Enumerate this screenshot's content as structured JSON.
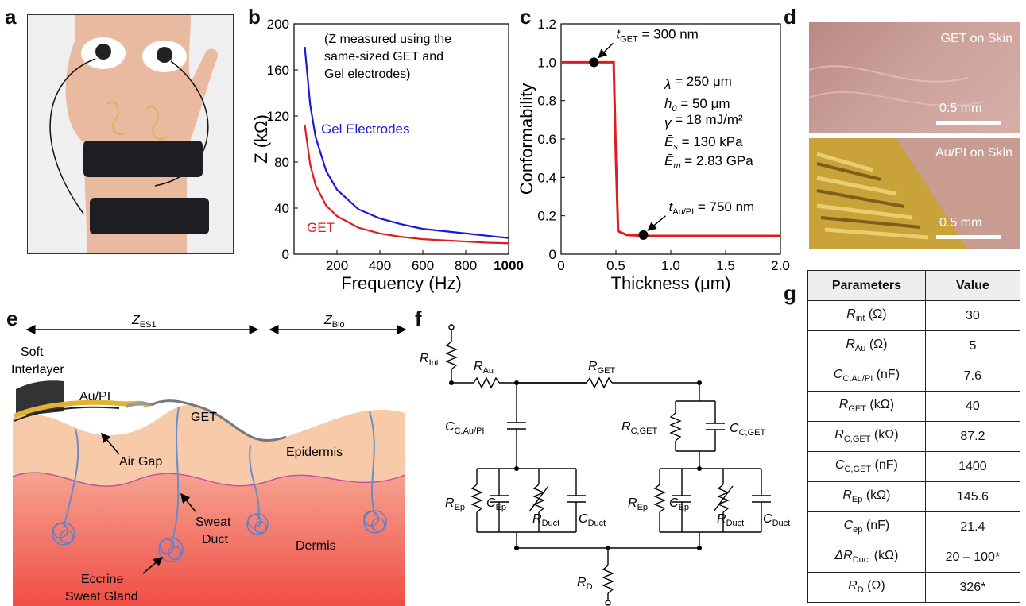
{
  "panels": {
    "a": "a",
    "b": "b",
    "c": "c",
    "d": "d",
    "e": "e",
    "f": "f",
    "g": "g"
  },
  "chart_data": [
    {
      "type": "line",
      "xlabel": "Frequency (Hz)",
      "ylabel": "Z (kΩ)",
      "xlim": [
        0,
        1000
      ],
      "ylim": [
        0,
        200
      ],
      "xticks": [
        200,
        400,
        600,
        800,
        1000
      ],
      "yticks": [
        0,
        40,
        80,
        120,
        160,
        200
      ],
      "annotation": [
        "(Z measured using the",
        "same-sized GET and",
        "Gel electrodes)"
      ],
      "series": [
        {
          "name": "Gel Electrodes",
          "color": "#1a1ad6",
          "x": [
            50,
            75,
            100,
            150,
            200,
            300,
            400,
            500,
            600,
            700,
            800,
            900,
            1000
          ],
          "y": [
            180,
            130,
            102,
            72,
            56,
            39,
            31,
            26,
            22,
            20,
            18,
            16,
            14
          ]
        },
        {
          "name": "GET",
          "color": "#e01b1b",
          "x": [
            50,
            75,
            100,
            150,
            200,
            300,
            400,
            500,
            600,
            700,
            800,
            900,
            1000
          ],
          "y": [
            112,
            78,
            60,
            42,
            33,
            23,
            18,
            15,
            13,
            12,
            11,
            10,
            9.5
          ]
        }
      ]
    },
    {
      "type": "line",
      "xlabel": "Thickness (μm)",
      "ylabel": "Conformability",
      "xlim": [
        0,
        2.0
      ],
      "ylim": [
        0,
        1.2
      ],
      "xticks": [
        "0",
        "0.5",
        "1.0",
        "1.5",
        "2.0"
      ],
      "yticks": [
        "0",
        "0.2",
        "0.4",
        "0.6",
        "0.8",
        "1.0",
        "1.2"
      ],
      "series": [
        {
          "name": "",
          "color": "#e01b1b",
          "x": [
            0,
            0.48,
            0.48,
            0.5,
            0.52,
            0.6,
            0.8,
            1.0,
            1.5,
            2.0
          ],
          "y": [
            1.0,
            1.0,
            0.98,
            0.5,
            0.12,
            0.1,
            0.095,
            0.095,
            0.095,
            0.095
          ]
        }
      ],
      "points": [
        {
          "x": 0.3,
          "y": 1.0,
          "label_t": "t",
          "label_sub": "GET",
          "label_rest": " = 300 nm"
        },
        {
          "x": 0.75,
          "y": 0.1,
          "label_t": "t",
          "label_sub": "Au/PI",
          "label_rest": " = 750 nm"
        }
      ],
      "params": [
        {
          "sym": "λ",
          "sub": "",
          "rest": " = 250 μm"
        },
        {
          "sym": "h",
          "sub": "0",
          "rest": " = 50 μm"
        },
        {
          "sym": "γ",
          "sub": "",
          "rest": " = 18 mJ/m²"
        },
        {
          "sym": "Ē",
          "sub": "s",
          "rest": " = 130 kPa"
        },
        {
          "sym": "Ē",
          "sub": "m",
          "rest": " = 2.83 GPa"
        }
      ]
    }
  ],
  "panel_d": {
    "top_caption": "GET on Skin",
    "bottom_caption": "Au/PI on Skin",
    "scale": "0.5 mm"
  },
  "panel_e": {
    "z_es1": "Z",
    "z_es1_sub": "ES1",
    "z_bio": "Z",
    "z_bio_sub": "Bio",
    "soft": "Soft",
    "interlayer": "Interlayer",
    "aupi": "Au/PI",
    "get": "GET",
    "airgap": "Air Gap",
    "epidermis": "Epidermis",
    "sweat": "Sweat",
    "duct": "Duct",
    "dermis": "Dermis",
    "eccrine": "Eccrine",
    "gland": "Sweat Gland"
  },
  "panel_f": {
    "r_int": [
      "R",
      "Int"
    ],
    "r_au": [
      "R",
      "Au"
    ],
    "r_get": [
      "R",
      "GET"
    ],
    "c_c_aupi": [
      "C",
      "C,Au/PI"
    ],
    "r_c_get": [
      "R",
      "C,GET"
    ],
    "c_c_get": [
      "C",
      "C,GET"
    ],
    "r_ep": [
      "R",
      "Ep"
    ],
    "c_ep": [
      "C",
      "Ep"
    ],
    "r_duct": [
      "R",
      "Duct"
    ],
    "c_duct": [
      "C",
      "Duct"
    ],
    "r_d": [
      "R",
      "D"
    ]
  },
  "table": {
    "headers": [
      "Parameters",
      "Value"
    ],
    "rows": [
      {
        "sym": "R",
        "sub": "int",
        "unit": " (Ω)",
        "value": "30"
      },
      {
        "sym": "R",
        "sub": "Au",
        "unit": " (Ω)",
        "value": "5"
      },
      {
        "sym": "C",
        "sub": "C,Au/PI",
        "unit": " (nF)",
        "value": "7.6"
      },
      {
        "sym": "R",
        "sub": "GET",
        "unit": " (kΩ)",
        "value": "40"
      },
      {
        "sym": "R",
        "sub": "C,GET",
        "unit": " (kΩ)",
        "value": "87.2"
      },
      {
        "sym": "C",
        "sub": "C,GET",
        "unit": " (nF)",
        "value": "1400"
      },
      {
        "sym": "R",
        "sub": "Ep",
        "unit": " (kΩ)",
        "value": "145.6"
      },
      {
        "sym": "C",
        "sub": "ep",
        "unit": " (nF)",
        "value": "21.4"
      },
      {
        "sym": "ΔR",
        "sub": "Duct",
        "unit": " (kΩ)",
        "value": "20 – 100*"
      },
      {
        "sym": "R",
        "sub": "D",
        "unit": " (Ω)",
        "value": "326*"
      }
    ]
  }
}
